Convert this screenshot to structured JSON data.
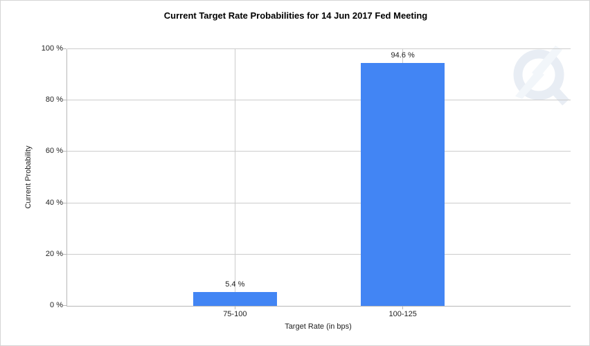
{
  "colors": {
    "bar": "#4285f4",
    "gridline": "#cccccc",
    "axis_line": "#b7b7b7",
    "text": "#222222",
    "title_text": "#000000",
    "canvas_border": "#d5d5d5",
    "background": "#ffffff",
    "watermark_ring": "#e8edf4",
    "watermark_bolt": "#f2f6fa"
  },
  "watermark": {
    "icon": "q-lightning-logo-icon"
  },
  "chart_data": {
    "type": "bar",
    "title": "Current Target Rate Probabilities for 14 Jun 2017 Fed Meeting",
    "xlabel": "Target Rate (in bps)",
    "ylabel": "Current Probability",
    "categories": [
      "75-100",
      "100-125"
    ],
    "values": [
      5.4,
      94.6
    ],
    "value_labels": [
      "5.4 %",
      "94.6 %"
    ],
    "y_ticks": [
      0,
      20,
      40,
      60,
      80,
      100
    ],
    "y_tick_labels": [
      "0 %",
      "20 %",
      "40 %",
      "60 %",
      "80 %",
      "100 %"
    ],
    "ylim": [
      0,
      100
    ],
    "grid": true,
    "vertical_gridlines_at_categories": true,
    "legend": "none",
    "bar_color": "#4285f4"
  }
}
